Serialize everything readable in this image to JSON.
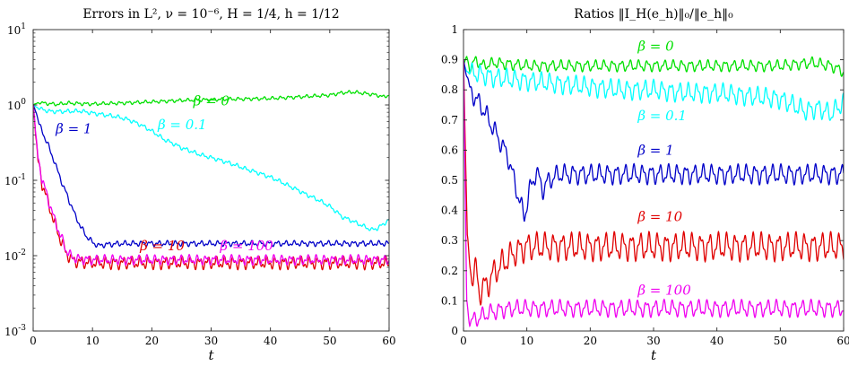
{
  "chart_data": [
    {
      "type": "line",
      "title": "Errors in L², ν = 10⁻⁶, H = 1/4, h = 1/12",
      "xlabel": "t",
      "ylabel": "",
      "xlim": [
        0,
        60
      ],
      "ylim": [
        0.001,
        10
      ],
      "yscale": "log",
      "grid": false,
      "xticks": [
        0,
        10,
        20,
        30,
        40,
        50,
        60
      ],
      "yticks": [
        {
          "value": 0.001,
          "base": "10",
          "exp": "-3"
        },
        {
          "value": 0.01,
          "base": "10",
          "exp": "-2"
        },
        {
          "value": 0.1,
          "base": "10",
          "exp": "-1"
        },
        {
          "value": 1,
          "base": "10",
          "exp": "0"
        },
        {
          "value": 10,
          "base": "10",
          "exp": "1"
        }
      ],
      "series": [
        {
          "name": "β = 0",
          "color": "#00e000",
          "label_at": {
            "x": 27,
            "y": 0.98
          },
          "x": [
            0,
            1,
            2,
            4,
            6,
            8,
            10,
            15,
            20,
            25,
            30,
            35,
            40,
            45,
            50,
            52,
            54,
            56,
            58,
            59,
            60
          ],
          "y": [
            1.0,
            1.08,
            1.05,
            1.02,
            1.06,
            1.04,
            1.03,
            1.06,
            1.1,
            1.15,
            1.18,
            1.2,
            1.22,
            1.28,
            1.35,
            1.45,
            1.48,
            1.42,
            1.35,
            1.28,
            1.35
          ],
          "wiggle": 0.025
        },
        {
          "name": "β = 0.1",
          "color": "#00ffff",
          "label_at": {
            "x": 21,
            "y": 0.48
          },
          "x": [
            0,
            1,
            2,
            3,
            5,
            8,
            10,
            12,
            14,
            16,
            18,
            20,
            22,
            25,
            28,
            30,
            33,
            36,
            40,
            43,
            46,
            50,
            52,
            55,
            57,
            58,
            59,
            60
          ],
          "y": [
            1.0,
            0.9,
            0.85,
            0.82,
            0.82,
            0.83,
            0.78,
            0.74,
            0.7,
            0.64,
            0.55,
            0.45,
            0.35,
            0.27,
            0.22,
            0.2,
            0.17,
            0.14,
            0.11,
            0.085,
            0.065,
            0.045,
            0.033,
            0.026,
            0.022,
            0.023,
            0.026,
            0.03
          ],
          "wiggle": 0.03
        },
        {
          "name": "β = 1",
          "color": "#0000c8",
          "label_at": {
            "x": 3.8,
            "y": 0.42
          },
          "x": [
            0,
            0.5,
            1,
            2,
            3,
            4,
            5,
            6,
            7,
            8,
            9,
            10,
            11,
            12,
            15,
            20,
            30,
            40,
            50,
            60
          ],
          "y": [
            1.0,
            0.8,
            0.55,
            0.36,
            0.23,
            0.14,
            0.085,
            0.055,
            0.035,
            0.024,
            0.018,
            0.015,
            0.0135,
            0.014,
            0.0145,
            0.0145,
            0.0145,
            0.0145,
            0.0145,
            0.0145
          ],
          "wiggle": 0.04
        },
        {
          "name": "β = 10",
          "color": "#e00000",
          "label_at": {
            "x": 18,
            "y": 0.0118
          },
          "x": [
            0,
            0.4,
            0.8,
            1.5,
            2.5,
            3.5,
            4.5,
            5.5,
            6.5,
            8,
            10,
            20,
            30,
            40,
            50,
            60
          ],
          "y": [
            1.0,
            0.4,
            0.18,
            0.09,
            0.05,
            0.028,
            0.017,
            0.011,
            0.0088,
            0.0082,
            0.008,
            0.008,
            0.008,
            0.008,
            0.008,
            0.008
          ],
          "wiggle": 0.09
        },
        {
          "name": "β = 100",
          "color": "#f000f0",
          "label_at": {
            "x": 31.5,
            "y": 0.0118
          },
          "x": [
            0,
            0.4,
            0.8,
            1.5,
            2.5,
            3.5,
            4.5,
            5.5,
            6.5,
            8,
            10,
            20,
            30,
            40,
            50,
            60
          ],
          "y": [
            1.0,
            0.42,
            0.2,
            0.1,
            0.055,
            0.031,
            0.019,
            0.012,
            0.0095,
            0.009,
            0.0088,
            0.0088,
            0.0088,
            0.0088,
            0.0088,
            0.0088
          ],
          "wiggle": 0.07
        }
      ]
    },
    {
      "type": "line",
      "title": "Ratios ‖I_H(e_h)‖₀/‖e_h‖₀",
      "xlabel": "t",
      "ylabel": "",
      "xlim": [
        0,
        60
      ],
      "ylim": [
        0,
        1
      ],
      "yscale": "linear",
      "grid": false,
      "xticks": [
        0,
        10,
        20,
        30,
        40,
        50,
        60
      ],
      "yticks": [
        0,
        0.1,
        0.2,
        0.3,
        0.4,
        0.5,
        0.6,
        0.7,
        0.8,
        0.9,
        1
      ],
      "series": [
        {
          "name": "β = 0",
          "color": "#00e000",
          "label_at": {
            "x": 27.5,
            "y": 0.93
          },
          "x": [
            0,
            0.5,
            1,
            2,
            3,
            5,
            10,
            20,
            30,
            40,
            50,
            55,
            58,
            60
          ],
          "y": [
            0.88,
            0.91,
            0.87,
            0.9,
            0.88,
            0.89,
            0.88,
            0.88,
            0.88,
            0.88,
            0.88,
            0.89,
            0.88,
            0.86
          ],
          "wiggle": 0.02
        },
        {
          "name": "β = 0.1",
          "color": "#00ffff",
          "label_at": {
            "x": 27.5,
            "y": 0.7
          },
          "x": [
            0,
            1,
            3,
            5,
            10,
            15,
            20,
            25,
            30,
            35,
            40,
            45,
            50,
            52,
            54,
            56,
            58,
            60
          ],
          "y": [
            0.88,
            0.86,
            0.85,
            0.84,
            0.83,
            0.82,
            0.81,
            0.8,
            0.8,
            0.79,
            0.79,
            0.78,
            0.77,
            0.75,
            0.73,
            0.74,
            0.72,
            0.76
          ],
          "wiggle": 0.035
        },
        {
          "name": "β = 1",
          "color": "#0000c8",
          "label_at": {
            "x": 27.5,
            "y": 0.585
          },
          "x": [
            0,
            0.5,
            1,
            2,
            3,
            4,
            5,
            6,
            7,
            8,
            9,
            9.6,
            10.5,
            11.5,
            12.5,
            13.5,
            15,
            20,
            30,
            40,
            50,
            60
          ],
          "y": [
            0.9,
            0.85,
            0.8,
            0.77,
            0.74,
            0.7,
            0.66,
            0.62,
            0.58,
            0.5,
            0.42,
            0.38,
            0.47,
            0.53,
            0.47,
            0.5,
            0.52,
            0.52,
            0.52,
            0.52,
            0.52,
            0.52
          ],
          "wiggle": 0.035
        },
        {
          "name": "β = 10",
          "color": "#e00000",
          "label_at": {
            "x": 27.5,
            "y": 0.365
          },
          "x": [
            0,
            0.6,
            1.3,
            2,
            2.5,
            3,
            3.5,
            4.2,
            5,
            6,
            7,
            8,
            10,
            20,
            30,
            40,
            50,
            60
          ],
          "y": [
            0.9,
            0.3,
            0.18,
            0.2,
            0.13,
            0.14,
            0.15,
            0.17,
            0.2,
            0.22,
            0.24,
            0.26,
            0.28,
            0.28,
            0.28,
            0.28,
            0.28,
            0.28
          ],
          "wiggle": 0.05
        },
        {
          "name": "β = 100",
          "color": "#f000f0",
          "label_at": {
            "x": 27.5,
            "y": 0.12
          },
          "x": [
            0,
            0.5,
            1,
            2,
            3,
            4,
            5,
            6,
            8,
            10,
            20,
            30,
            40,
            50,
            60
          ],
          "y": [
            0.9,
            0.1,
            0.03,
            0.04,
            0.05,
            0.06,
            0.065,
            0.07,
            0.075,
            0.075,
            0.075,
            0.075,
            0.075,
            0.075,
            0.075
          ],
          "wiggle": 0.03
        }
      ]
    }
  ]
}
